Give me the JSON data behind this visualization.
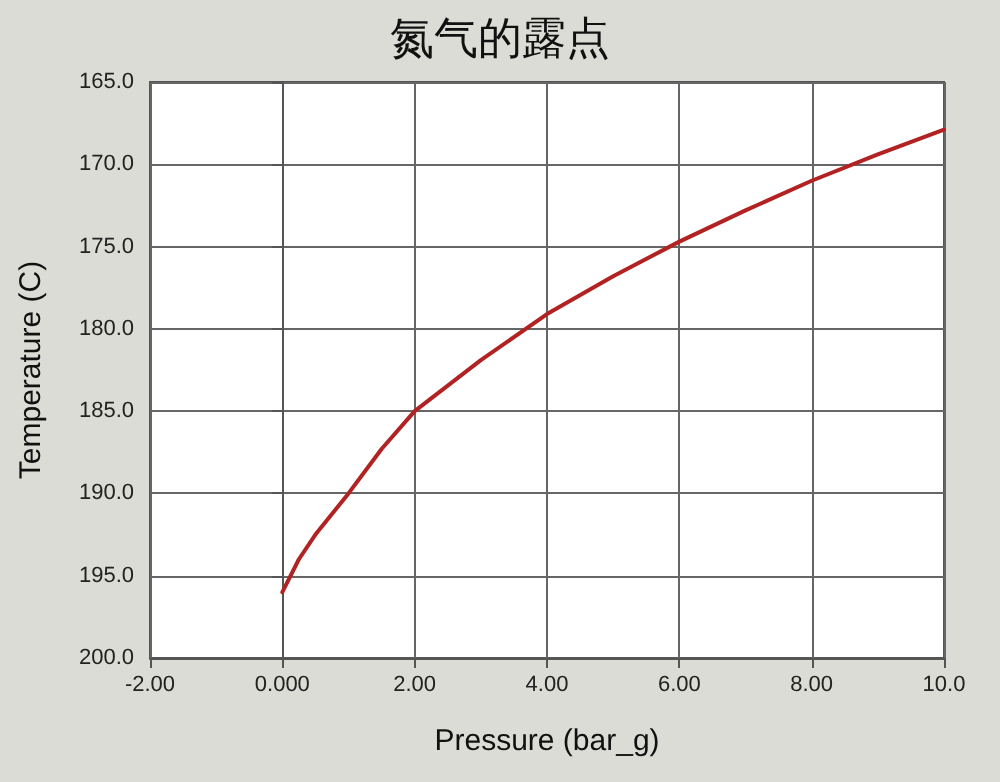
{
  "chart_data": {
    "type": "line",
    "title": "氮气的露点",
    "xlabel": "Pressure (bar_g)",
    "ylabel": "Temperature (C)",
    "x": [
      0,
      0.25,
      0.5,
      1,
      1.5,
      2,
      3,
      4,
      5,
      6,
      7,
      8,
      9,
      10
    ],
    "series": [
      {
        "color": "#b22222",
        "values": [
          196,
          194,
          192.5,
          190,
          187.3,
          185,
          181.9,
          179.1,
          176.8,
          174.7,
          172.8,
          171,
          169.4,
          167.9
        ]
      }
    ],
    "xlim": [
      -2,
      10
    ],
    "xticks": [
      {
        "value": -2,
        "label": "-2.00"
      },
      {
        "value": 0,
        "label": "0.000"
      },
      {
        "value": 2,
        "label": "2.00"
      },
      {
        "value": 4,
        "label": "4.00"
      },
      {
        "value": 6,
        "label": "6.00"
      },
      {
        "value": 8,
        "label": "8.00"
      },
      {
        "value": 10,
        "label": "10.0"
      }
    ],
    "ylim": [
      200,
      165
    ],
    "yticks": [
      {
        "value": 165,
        "label": "165.0"
      },
      {
        "value": 170,
        "label": "170.0"
      },
      {
        "value": 175,
        "label": "175.0"
      },
      {
        "value": 180,
        "label": "180.0"
      },
      {
        "value": 185,
        "label": "185.0"
      },
      {
        "value": 190,
        "label": "190.0"
      },
      {
        "value": 195,
        "label": "195.0"
      },
      {
        "value": 200,
        "label": "200.0"
      }
    ],
    "grid": true,
    "marker": "none",
    "line_style": "solid"
  }
}
